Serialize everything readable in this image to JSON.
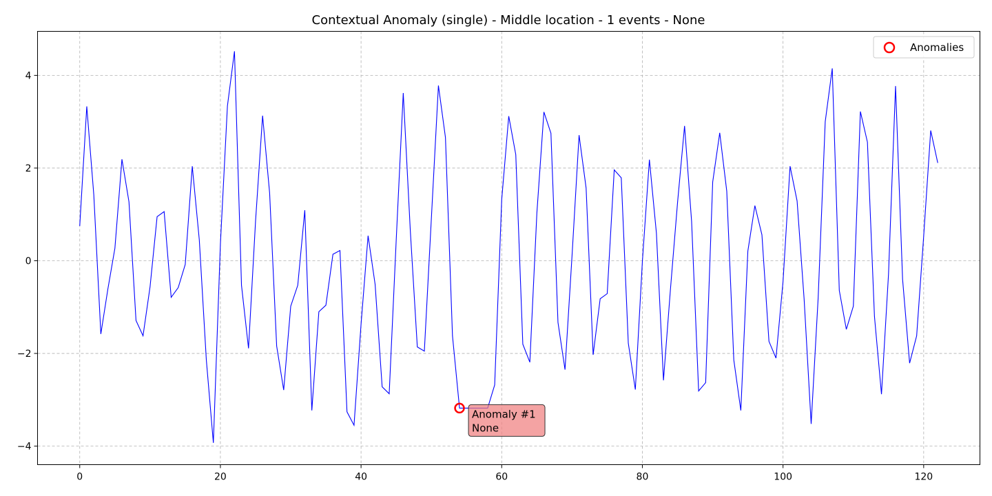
{
  "chart_data": {
    "type": "line",
    "title": "Contextual Anomaly (single) - Middle location - 1 events - None",
    "xlabel": "",
    "ylabel": "",
    "xlim": [
      -6,
      128
    ],
    "ylim": [
      -4.4,
      4.95
    ],
    "x_ticks": [
      0,
      20,
      40,
      60,
      80,
      100,
      120
    ],
    "y_ticks": [
      -4,
      -2,
      0,
      2,
      4
    ],
    "x_tick_labels": [
      "0",
      "20",
      "40",
      "60",
      "80",
      "100",
      "120"
    ],
    "y_tick_labels": [
      "−4",
      "−2",
      "0",
      "2",
      "4"
    ],
    "grid": true,
    "legend_position": "top-right",
    "series": [
      {
        "name": "",
        "color": "#0000ff",
        "x_start": 0,
        "x_step": 1,
        "values": [
          0.75,
          3.33,
          1.42,
          -1.58,
          -0.61,
          0.27,
          2.19,
          1.27,
          -1.29,
          -1.62,
          -0.56,
          0.95,
          1.06,
          -0.79,
          -0.58,
          -0.08,
          2.04,
          0.45,
          -2.14,
          -3.93,
          0.36,
          3.34,
          4.52,
          -0.53,
          -1.89,
          0.86,
          3.13,
          1.46,
          -1.84,
          -2.79,
          -0.98,
          -0.53,
          1.09,
          -3.23,
          -1.1,
          -0.96,
          0.14,
          0.22,
          -3.26,
          -3.55,
          -1.37,
          0.54,
          -0.51,
          -2.72,
          -2.87,
          0.45,
          3.62,
          0.66,
          -1.86,
          -1.95,
          0.92,
          3.78,
          2.66,
          -1.62,
          -3.18,
          -3.18,
          -3.18,
          -3.18,
          -3.18,
          -2.68,
          1.32,
          3.12,
          2.29,
          -1.8,
          -2.19,
          1.03,
          3.21,
          2.75,
          -1.33,
          -2.35,
          0.11,
          2.71,
          1.57,
          -2.03,
          -0.82,
          -0.71,
          1.96,
          1.79,
          -1.78,
          -2.78,
          -0.02,
          2.18,
          0.59,
          -2.58,
          -0.6,
          1.25,
          2.91,
          0.85,
          -2.81,
          -2.63,
          1.7,
          2.76,
          1.5,
          -2.14,
          -3.23,
          0.21,
          1.19,
          0.56,
          -1.74,
          -2.1,
          -0.45,
          2.04,
          1.29,
          -0.83,
          -3.52,
          -0.79,
          3.0,
          4.15,
          -0.64,
          -1.48,
          -0.98,
          3.22,
          2.56,
          -1.2,
          -2.88,
          -0.29,
          3.77,
          -0.4,
          -2.21,
          -1.62,
          0.53,
          2.81,
          2.11
        ]
      }
    ],
    "anomalies": {
      "legend_label": "Anomalies",
      "color": "#ff0000",
      "points": [
        {
          "x": 54,
          "y": -3.18,
          "label_line1": "Anomaly #1",
          "label_line2": "None"
        }
      ]
    }
  }
}
